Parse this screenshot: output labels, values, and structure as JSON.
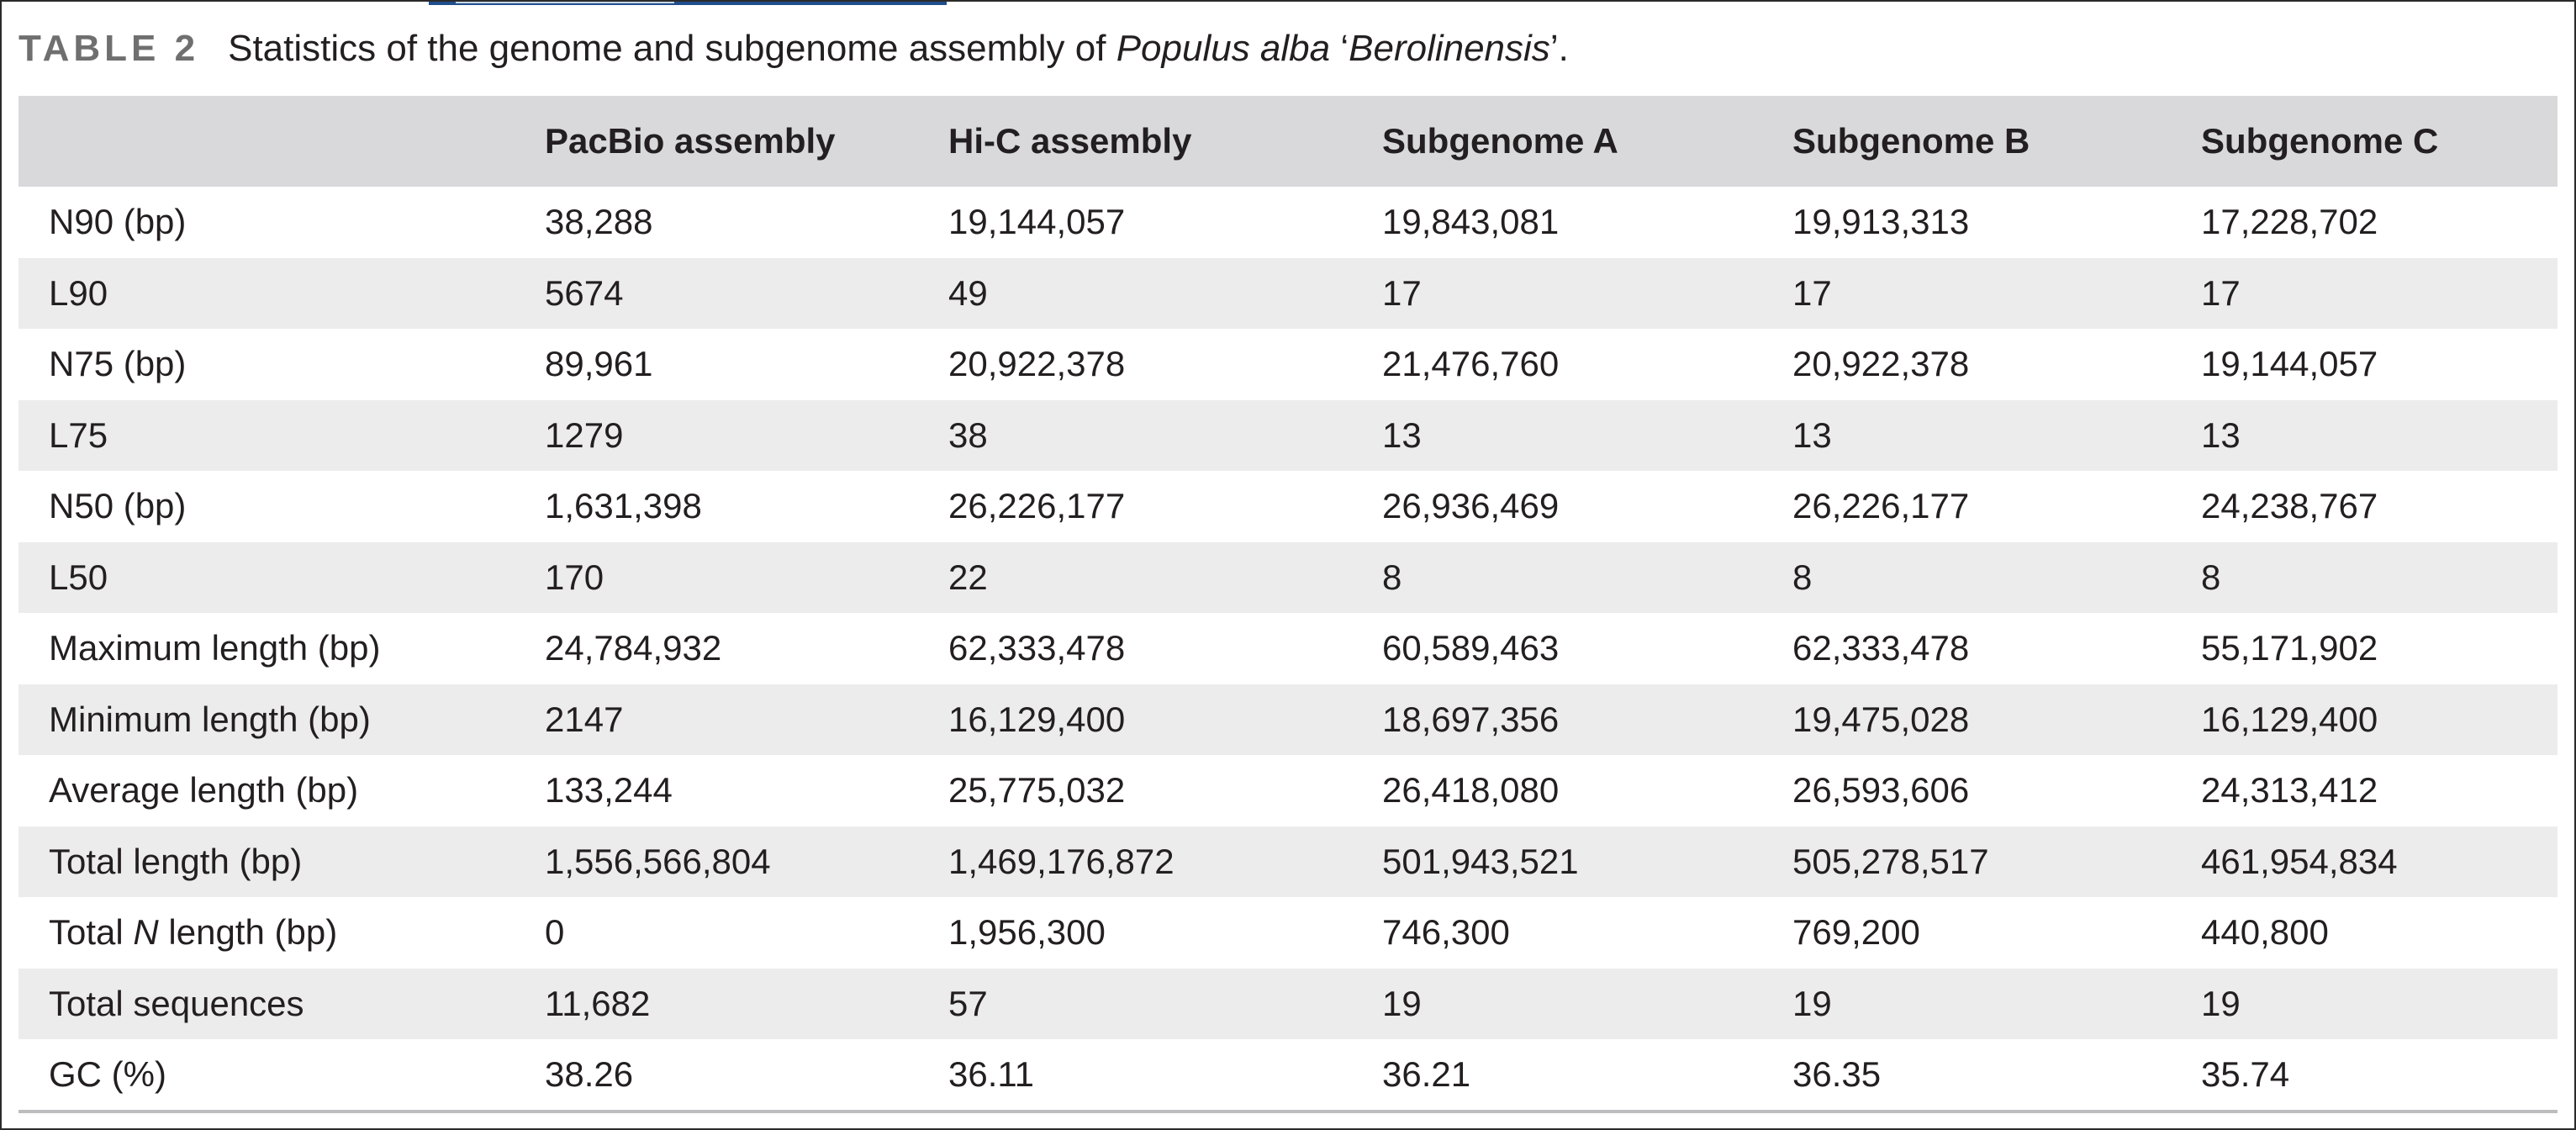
{
  "caption": {
    "label": "TABLE 2",
    "text_before": "Statistics of the genome and subgenome assembly of ",
    "species": "Populus alba",
    "text_mid": " ‘",
    "cultivar": "Berolinensis",
    "text_after": "’."
  },
  "table": {
    "columns": [
      "",
      "PacBio assembly",
      "Hi-C assembly",
      "Subgenome A",
      "Subgenome B",
      "Subgenome C"
    ],
    "rows": [
      {
        "label": "N90 (bp)",
        "values": [
          "38,288",
          "19,144,057",
          "19,843,081",
          "19,913,313",
          "17,228,702"
        ]
      },
      {
        "label": "L90",
        "values": [
          "5674",
          "49",
          "17",
          "17",
          "17"
        ]
      },
      {
        "label": "N75 (bp)",
        "values": [
          "89,961",
          "20,922,378",
          "21,476,760",
          "20,922,378",
          "19,144,057"
        ]
      },
      {
        "label": "L75",
        "values": [
          "1279",
          "38",
          "13",
          "13",
          "13"
        ]
      },
      {
        "label": "N50 (bp)",
        "values": [
          "1,631,398",
          "26,226,177",
          "26,936,469",
          "26,226,177",
          "24,238,767"
        ]
      },
      {
        "label": "L50",
        "values": [
          "170",
          "22",
          "8",
          "8",
          "8"
        ]
      },
      {
        "label": "Maximum length (bp)",
        "values": [
          "24,784,932",
          "62,333,478",
          "60,589,463",
          "62,333,478",
          "55,171,902"
        ]
      },
      {
        "label": "Minimum length (bp)",
        "values": [
          "2147",
          "16,129,400",
          "18,697,356",
          "19,475,028",
          "16,129,400"
        ]
      },
      {
        "label": "Average length (bp)",
        "values": [
          "133,244",
          "25,775,032",
          "26,418,080",
          "26,593,606",
          "24,313,412"
        ]
      },
      {
        "label": "Total length (bp)",
        "values": [
          "1,556,566,804",
          "1,469,176,872",
          "501,943,521",
          "505,278,517",
          "461,954,834"
        ]
      },
      {
        "label_before": "Total ",
        "label_italic": "N",
        "label_after": " length (bp)",
        "values": [
          "0",
          "1,956,300",
          "746,300",
          "769,200",
          "440,800"
        ]
      },
      {
        "label": "Total sequences",
        "values": [
          "11,682",
          "57",
          "19",
          "19",
          "19"
        ]
      },
      {
        "label": "GC (%)",
        "values": [
          "38.26",
          "36.11",
          "36.21",
          "36.35",
          "35.74"
        ]
      }
    ]
  },
  "colors": {
    "header_bg": "#d9d9db",
    "stripe_bg": "#ececed",
    "label_gray": "#6f6f6f",
    "top_accent": "#1f4e8c"
  }
}
